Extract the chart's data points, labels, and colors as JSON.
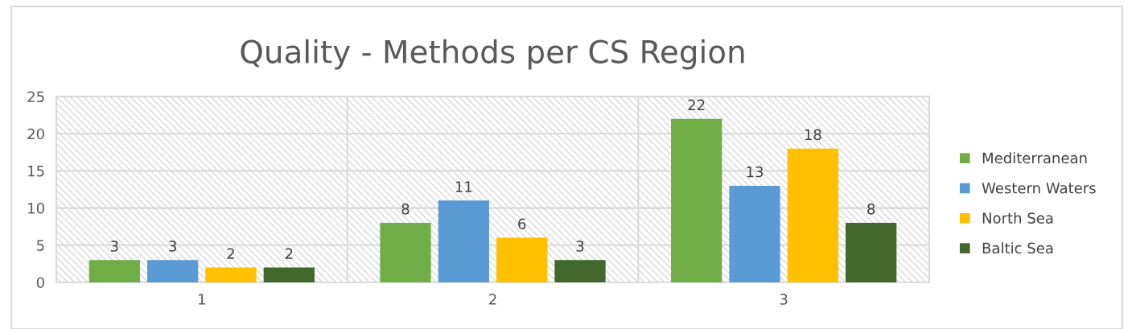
{
  "chart_data": {
    "type": "bar",
    "title": "Quality - Methods per CS Region",
    "categories": [
      "1",
      "2",
      "3"
    ],
    "series": [
      {
        "name": "Mediterranean",
        "color": "#70ad47",
        "values": [
          3,
          8,
          22
        ]
      },
      {
        "name": "Western Waters",
        "color": "#5b9bd5",
        "values": [
          3,
          11,
          13
        ]
      },
      {
        "name": "North Sea",
        "color": "#ffc000",
        "values": [
          2,
          6,
          18
        ]
      },
      {
        "name": "Baltic Sea",
        "color": "#43682b",
        "values": [
          2,
          3,
          8
        ]
      }
    ],
    "ylim": [
      0,
      25
    ],
    "yticks": [
      0,
      5,
      10,
      15,
      20,
      25
    ],
    "grid": true,
    "legend": "right",
    "data_labels": true
  }
}
